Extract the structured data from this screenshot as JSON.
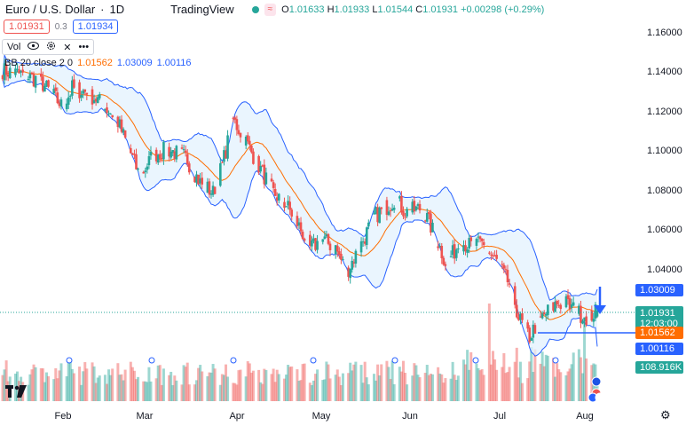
{
  "header": {
    "symbol": "Euro / U.S. Dollar",
    "separator": "·",
    "interval": "1D",
    "brand": "TradingView",
    "market_badge": "≈",
    "ohlc": {
      "o_label": "O",
      "o": "1.01633",
      "h_label": "H",
      "h": "1.01933",
      "l_label": "L",
      "l": "1.01544",
      "c_label": "C",
      "c": "1.01931",
      "change": "+0.00298 (+0.29%)"
    }
  },
  "quote": {
    "bid": "1.01931",
    "spread": "0.3",
    "ask": "1.01934"
  },
  "indicators": {
    "vol_label": "Vol",
    "bb": {
      "label": "BB 20 close 2 0",
      "basis": "1.01562",
      "upper": "1.03009",
      "lower": "1.00116"
    }
  },
  "price_axis": {
    "labels": [
      "1.16000",
      "1.14000",
      "1.12000",
      "1.10000",
      "1.08000",
      "1.06000",
      "1.04000"
    ]
  },
  "price_tags": {
    "upper": "1.03009",
    "close": "1.01931",
    "countdown": "12:03:00",
    "basis": "1.01562",
    "lower": "1.00116",
    "volume": "108.916K"
  },
  "time_axis": {
    "labels": [
      "Feb",
      "Mar",
      "Apr",
      "May",
      "Jun",
      "Jul",
      "Aug"
    ]
  },
  "colors": {
    "up": "#26a69a",
    "down": "#ef5350",
    "band": "#2962ff",
    "basis": "#ff6d00",
    "band_fill": "#e3f2fd"
  },
  "chart_data": {
    "type": "candlestick",
    "symbol": "EURUSD",
    "interval": "1D",
    "y_range": [
      1.0,
      1.166
    ],
    "guide_points": [
      [
        0,
        1.141
      ],
      [
        10,
        1.139
      ],
      [
        20,
        1.136
      ],
      [
        28,
        1.128
      ],
      [
        33,
        1.122
      ],
      [
        38,
        1.132
      ],
      [
        45,
        1.13
      ],
      [
        52,
        1.126
      ],
      [
        62,
        1.117
      ],
      [
        70,
        1.099
      ],
      [
        75,
        1.087
      ],
      [
        82,
        1.098
      ],
      [
        90,
        1.101
      ],
      [
        100,
        1.097
      ],
      [
        108,
        1.084
      ],
      [
        115,
        1.079
      ],
      [
        120,
        1.093
      ],
      [
        126,
        1.116
      ],
      [
        133,
        1.105
      ],
      [
        138,
        1.096
      ],
      [
        148,
        1.079
      ],
      [
        155,
        1.073
      ],
      [
        162,
        1.062
      ],
      [
        168,
        1.051
      ],
      [
        175,
        1.055
      ],
      [
        182,
        1.051
      ],
      [
        188,
        1.039
      ],
      [
        195,
        1.051
      ],
      [
        203,
        1.067
      ],
      [
        210,
        1.072
      ],
      [
        215,
        1.076
      ],
      [
        220,
        1.069
      ],
      [
        228,
        1.071
      ],
      [
        232,
        1.066
      ],
      [
        237,
        1.056
      ],
      [
        242,
        1.044
      ],
      [
        246,
        1.048
      ],
      [
        250,
        1.054
      ],
      [
        256,
        1.052
      ],
      [
        262,
        1.053
      ],
      [
        270,
        1.044
      ],
      [
        278,
        1.031
      ],
      [
        282,
        1.016
      ],
      [
        288,
        1.006
      ],
      [
        292,
        1.013
      ],
      [
        298,
        1.019
      ],
      [
        303,
        1.023
      ],
      [
        308,
        1.023
      ],
      [
        315,
        1.018
      ],
      [
        320,
        1.016
      ],
      [
        325,
        1.019
      ]
    ],
    "bb": {
      "period": 20,
      "stddev": 2,
      "basis_last": 1.01562,
      "upper_last": 1.03009,
      "lower_last": 1.00116
    },
    "last": {
      "open": 1.01633,
      "high": 1.01933,
      "low": 1.01544,
      "close": 1.01931
    }
  }
}
